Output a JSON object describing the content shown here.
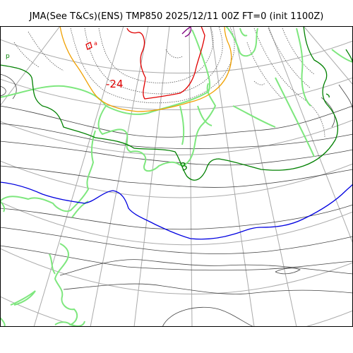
{
  "title": "JMA(See T&Cs)(ENS) TMP850 2025/12/11 00Z FT=0 (init 1100Z)",
  "contour_labels": {
    "red": "-24",
    "green": "3",
    "small_red": "a",
    "small_green": "p"
  },
  "colors": {
    "grid": "#aaaaaa",
    "coast": "#7ee77e",
    "isotherm_thin": "#333333",
    "isotherm_dotted": "#555555",
    "red": "#e00000",
    "orange": "#f0a000",
    "green": "#008000",
    "blue": "#0000e0",
    "purple": "#800080"
  }
}
